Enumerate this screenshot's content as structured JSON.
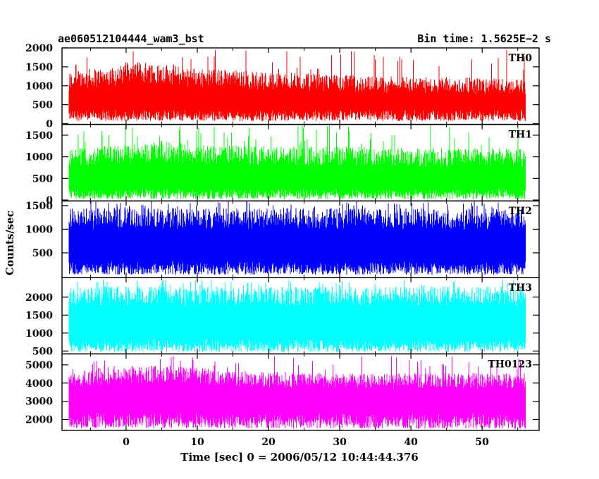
{
  "header": {
    "title": "ae060512104444_wam3_bst",
    "bin_time": "Bin time: 1.5625E−2 s"
  },
  "chart_data": {
    "type": "line",
    "xlabel": "Time [sec] 0 = 2006/05/12 10:44:44.376",
    "ylabel": "Counts/sec",
    "xlim": [
      -9,
      58
    ],
    "x_ticks": [
      0,
      10,
      20,
      30,
      40,
      50
    ],
    "x_range_data": [
      -8,
      56
    ],
    "panels": [
      {
        "name": "TH0",
        "color": "#ff0000",
        "ylim": [
          -20,
          2000
        ],
        "y_ticks": [
          0,
          500,
          1000,
          1500,
          2000
        ],
        "series": {
          "min_low": 70,
          "min_high": 380,
          "max_low": 900,
          "max_high": 1400,
          "spike": 1980,
          "profile": [
            [
              -8,
              1.0
            ],
            [
              0,
              1.12
            ],
            [
              3,
              1.2
            ],
            [
              10,
              1.05
            ],
            [
              20,
              0.98
            ],
            [
              30,
              0.92
            ],
            [
              40,
              0.88
            ],
            [
              56,
              0.86
            ]
          ]
        }
      },
      {
        "name": "TH1",
        "color": "#00ff00",
        "ylim": [
          -20,
          1750
        ],
        "y_ticks": [
          0,
          500,
          1000,
          1500
        ],
        "series": {
          "min_low": 20,
          "min_high": 280,
          "max_low": 780,
          "max_high": 1250,
          "spike": 1750,
          "profile": [
            [
              -8,
              0.95
            ],
            [
              0,
              1.05
            ],
            [
              5,
              1.1
            ],
            [
              10,
              1.02
            ],
            [
              56,
              0.95
            ]
          ]
        }
      },
      {
        "name": "TH2",
        "color": "#0000ff",
        "ylim": [
          -20,
          1600
        ],
        "y_ticks": [
          500,
          1000,
          1500
        ],
        "series": {
          "min_low": 40,
          "min_high": 330,
          "max_low": 1000,
          "max_high": 1450,
          "spike": 1600,
          "profile": [
            [
              -8,
              1.0
            ],
            [
              56,
              1.0
            ]
          ]
        }
      },
      {
        "name": "TH3",
        "color": "#00ffff",
        "ylim": [
          420,
          2550
        ],
        "y_ticks": [
          500,
          1000,
          1500,
          2000
        ],
        "series": {
          "min_low": 470,
          "min_high": 850,
          "max_low": 1750,
          "max_high": 2300,
          "spike": 2500,
          "profile": [
            [
              -8,
              1.0
            ],
            [
              56,
              1.0
            ]
          ]
        }
      },
      {
        "name": "TH0123",
        "color": "#ff00ff",
        "ylim": [
          1400,
          5600
        ],
        "y_ticks": [
          2000,
          3000,
          4000,
          5000
        ],
        "series": {
          "min_low": 1500,
          "min_high": 2400,
          "max_low": 3800,
          "max_high": 4700,
          "spike": 5500,
          "profile": [
            [
              -8,
              0.98
            ],
            [
              0,
              1.04
            ],
            [
              5,
              1.06
            ],
            [
              15,
              1.0
            ],
            [
              30,
              0.96
            ],
            [
              56,
              0.97
            ]
          ]
        }
      }
    ]
  }
}
